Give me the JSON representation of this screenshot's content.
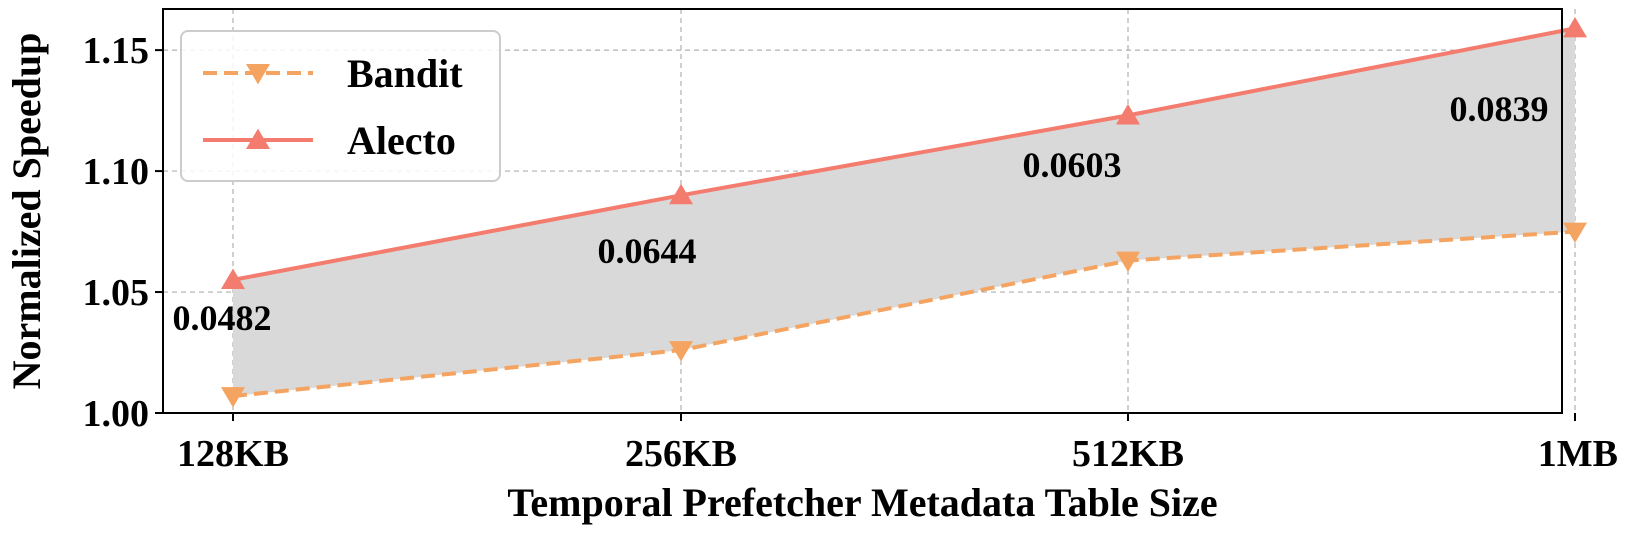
{
  "chart_data": {
    "type": "line",
    "xlabel": "Temporal Prefetcher Metadata Table Size",
    "ylabel": "Normalized Speedup",
    "categories": [
      "128KB",
      "256KB",
      "512KB",
      "1MB"
    ],
    "ylim": [
      1.0,
      1.167
    ],
    "yticks": [
      1.0,
      1.05,
      1.1,
      1.15
    ],
    "ytick_labels": [
      "1.00",
      "1.05",
      "1.10",
      "1.15"
    ],
    "grid": true,
    "legend_position": "top-left",
    "fill_between": {
      "color": "#d9d9d9"
    },
    "series": [
      {
        "name": "Bandit",
        "values": [
          1.007,
          1.026,
          1.063,
          1.075
        ],
        "color": "#f4a460",
        "linestyle": "dashed",
        "marker": "triangle-down"
      },
      {
        "name": "Alecto",
        "values": [
          1.055,
          1.09,
          1.123,
          1.159
        ],
        "color": "#f47c6e",
        "linestyle": "solid",
        "marker": "triangle-up"
      }
    ],
    "annotations": [
      "0.0482",
      "0.0644",
      "0.0603",
      "0.0839"
    ]
  }
}
